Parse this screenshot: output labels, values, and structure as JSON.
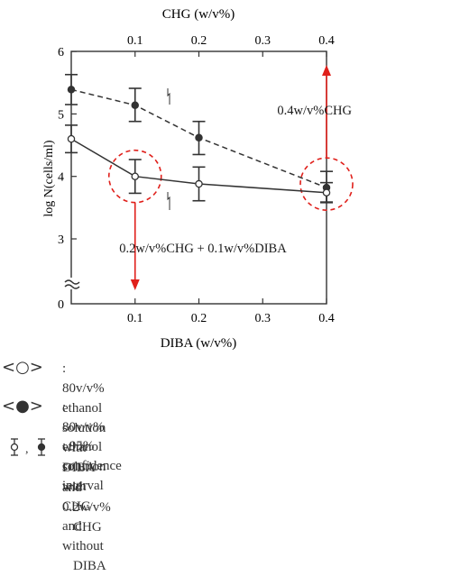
{
  "chart_data": {
    "type": "line",
    "top_axis": {
      "label": "CHG (w/v%)",
      "ticks": [
        "0.1",
        "0.2",
        "0.3",
        "0.4"
      ]
    },
    "bottom_axis": {
      "label": "DIBA (w/v%)",
      "ticks": [
        "0.1",
        "0.2",
        "0.3",
        "0.4"
      ]
    },
    "y_axis": {
      "label": "log N(cells/ml)",
      "ticks": [
        "0",
        "3",
        "4",
        "5",
        "6"
      ],
      "break": true
    },
    "xlim": [
      0,
      0.4
    ],
    "ylim": [
      0,
      6
    ],
    "series": [
      {
        "style": "dashed",
        "marker": "filled",
        "x": [
          0,
          0.1,
          0.2,
          0.4
        ],
        "y": [
          5.39,
          5.14,
          4.62,
          3.82
        ],
        "ci": [
          [
            5.15,
            5.63
          ],
          [
            4.88,
            5.41
          ],
          [
            4.35,
            4.88
          ],
          [
            3.58,
            4.08
          ]
        ]
      },
      {
        "style": "solid",
        "marker": "open",
        "x": [
          0,
          0.1,
          0.2,
          0.4
        ],
        "y": [
          4.6,
          4.0,
          3.88,
          3.74
        ],
        "ci": [
          [
            4.38,
            4.82
          ],
          [
            3.73,
            4.27
          ],
          [
            3.61,
            4.15
          ],
          [
            3.59,
            3.9
          ]
        ]
      }
    ],
    "annotations": [
      {
        "text": "0.4w/v%CHG",
        "x": 0.4,
        "y": 3.82,
        "arrow": "up"
      },
      {
        "text": "0.2w/v%CHG + 0.1w/v%DIBA",
        "x": 0.1,
        "y": 4.0,
        "arrow": "down"
      }
    ],
    "colors": {
      "annotation": "#e0201b",
      "line": "#333333"
    }
  },
  "legend": {
    "items": [
      {
        "symbol": "<○>",
        "text": ": 80v/v% ethanol solution with DIBA and 0.2w/v%",
        "text2": "CHG"
      },
      {
        "symbol": "<●>",
        "text": ": 80v/v% ethanol solution with CHG and without",
        "text2": "DIBA"
      },
      {
        "symbol": "ǫ , ɸ",
        "text": ": 95% confidence interval",
        "text2": ""
      }
    ]
  }
}
